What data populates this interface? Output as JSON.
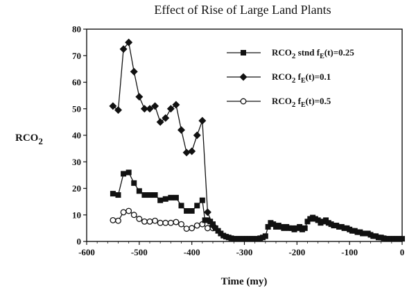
{
  "chart_data": {
    "type": "line",
    "title": "Effect of Rise of Large Land Plants",
    "xlabel": "Time  (my)",
    "ylabel": "RCO2",
    "xlim": [
      -600,
      0
    ],
    "ylim": [
      0,
      80
    ],
    "xticks": [
      -600,
      -500,
      -400,
      -300,
      -200,
      -100,
      0
    ],
    "yticks": [
      0,
      10,
      20,
      30,
      40,
      50,
      60,
      70,
      80
    ],
    "grid": false,
    "legend_position": "top-right",
    "series": [
      {
        "name": "RCO2 stnd fE(t)=0.25",
        "legend_parts": {
          "main": "RCO",
          "sub": "2",
          "rest": " stnd f",
          "sub2": "E",
          "tail": "(t)=0.25"
        },
        "marker": "square",
        "x": [
          -550,
          -540,
          -530,
          -520,
          -510,
          -500,
          -490,
          -480,
          -470,
          -460,
          -450,
          -440,
          -430,
          -420,
          -410,
          -400,
          -390,
          -380,
          -375,
          -370,
          -365,
          -360,
          -355,
          -350,
          -345,
          -340,
          -335,
          -330,
          -325,
          -320,
          -315,
          -310,
          -305,
          -300,
          -295,
          -290,
          -285,
          -280,
          -275,
          -270,
          -265,
          -260,
          -255,
          -250,
          -245,
          -240,
          -235,
          -230,
          -225,
          -220,
          -215,
          -210,
          -205,
          -200,
          -195,
          -190,
          -185,
          -180,
          -175,
          -170,
          -165,
          -160,
          -155,
          -150,
          -145,
          -140,
          -135,
          -130,
          -125,
          -120,
          -115,
          -110,
          -105,
          -100,
          -95,
          -90,
          -85,
          -80,
          -75,
          -70,
          -65,
          -60,
          -55,
          -50,
          -45,
          -40,
          -35,
          -30,
          -25,
          -20,
          -15,
          -10,
          -5,
          0
        ],
        "y": [
          18,
          17.5,
          25.5,
          26,
          22,
          19,
          17.5,
          17.5,
          17.5,
          15.5,
          16,
          16.5,
          16.5,
          13.5,
          11.5,
          11.5,
          13.5,
          15.5,
          8,
          8,
          7.5,
          6.5,
          5,
          4,
          3,
          2.2,
          1.8,
          1.5,
          1.2,
          1,
          1,
          1,
          1,
          1,
          1,
          1,
          1,
          1,
          1,
          1.2,
          1.5,
          2,
          5.5,
          7,
          6.5,
          5.5,
          6,
          5.5,
          5,
          5.5,
          5,
          5,
          4.5,
          5,
          5.5,
          4.5,
          5,
          7.5,
          8.5,
          9,
          8.5,
          8,
          7,
          7.5,
          8,
          7,
          6.5,
          6,
          6,
          5.5,
          5.5,
          5,
          5,
          4.5,
          4,
          4,
          3.5,
          3.5,
          3,
          3,
          3,
          2.5,
          2,
          2,
          1.5,
          1.5,
          1.2,
          1,
          1,
          1,
          1,
          1,
          1,
          1
        ]
      },
      {
        "name": "RCO2 fE(t)=0.1",
        "legend_parts": {
          "main": "RCO",
          "sub": "2",
          "rest": " f",
          "sub2": "E",
          "tail": "(t)=0.1"
        },
        "marker": "diamond",
        "x": [
          -550,
          -540,
          -530,
          -520,
          -510,
          -500,
          -490,
          -480,
          -470,
          -460,
          -450,
          -440,
          -430,
          -420,
          -410,
          -400,
          -390,
          -380,
          -370,
          -360
        ],
        "y": [
          51,
          49.5,
          72.5,
          75,
          64,
          54.5,
          50,
          50,
          51,
          45,
          46.5,
          50,
          51.5,
          42,
          33.5,
          34,
          40,
          45.5,
          11,
          6
        ]
      },
      {
        "name": "RCO2 fE(t)=0.5",
        "legend_parts": {
          "main": "RCO",
          "sub": "2",
          "rest": " f",
          "sub2": "E",
          "tail": "(t)=0.5"
        },
        "marker": "circle-open",
        "x": [
          -550,
          -540,
          -530,
          -520,
          -510,
          -500,
          -490,
          -480,
          -470,
          -460,
          -450,
          -440,
          -430,
          -420,
          -410,
          -400,
          -390,
          -380,
          -370,
          -360
        ],
        "y": [
          8,
          7.8,
          11,
          11.5,
          10,
          8.5,
          7.5,
          7.5,
          7.8,
          7,
          7,
          7,
          7.3,
          6.5,
          4.8,
          5,
          6,
          6.5,
          5,
          5
        ]
      }
    ]
  }
}
